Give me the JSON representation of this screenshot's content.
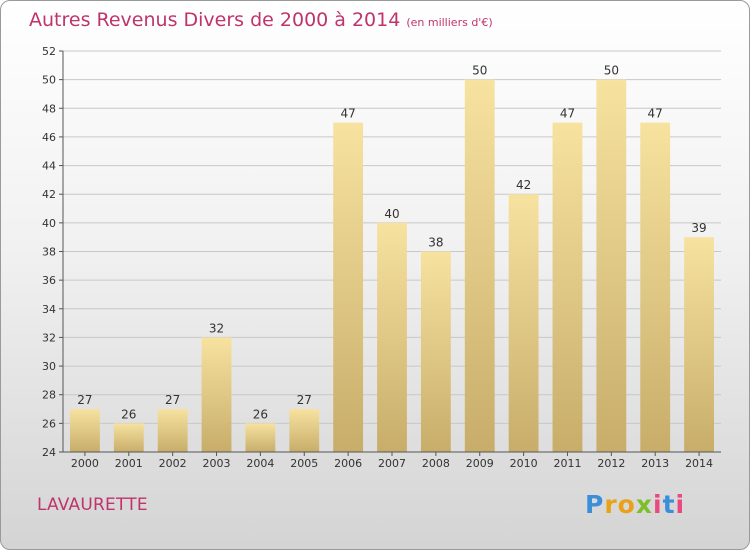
{
  "header": {
    "title": "Autres Revenus Divers de 2000 à 2014",
    "subtitle": "(en milliers d'€)"
  },
  "location": "LAVAURETTE",
  "brand": {
    "name": "Proxiti",
    "letters": [
      "P",
      "r",
      "o",
      "x",
      "i",
      "t",
      "i"
    ]
  },
  "colors": {
    "title": "#c0336b",
    "bar_light": "#f7e2a0",
    "bar_dark": "#c8ad6a",
    "grid": "#c8c8c8"
  },
  "chart_data": {
    "type": "bar",
    "title": "Autres Revenus Divers de 2000 à 2014",
    "subtitle": "(en milliers d'€)",
    "xlabel": "",
    "ylabel": "",
    "categories": [
      "2000",
      "2001",
      "2002",
      "2003",
      "2004",
      "2005",
      "2006",
      "2007",
      "2008",
      "2009",
      "2010",
      "2011",
      "2012",
      "2013",
      "2014"
    ],
    "values": [
      27,
      26,
      27,
      32,
      26,
      27,
      47,
      40,
      38,
      50,
      42,
      47,
      50,
      47,
      39
    ],
    "ylim": [
      24,
      52
    ],
    "yticks": [
      24,
      26,
      28,
      30,
      32,
      34,
      36,
      38,
      40,
      42,
      44,
      46,
      48,
      50,
      52
    ],
    "grid": true,
    "legend": "none"
  }
}
